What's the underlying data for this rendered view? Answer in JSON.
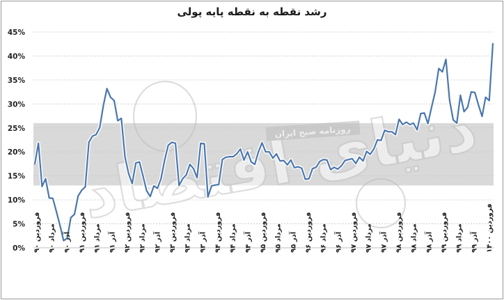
{
  "chart_data": {
    "type": "line",
    "title": "رشد نقطه به نقطه پایه پولی",
    "xlabel": "",
    "ylabel": "",
    "ylim": [
      0,
      45
    ],
    "yticks": [
      "0%",
      "5%",
      "10%",
      "15%",
      "20%",
      "25%",
      "30%",
      "35%",
      "40%",
      "45%"
    ],
    "grid": true,
    "band": [
      13,
      26
    ],
    "watermark": {
      "brand": "دنیای اقتصاد",
      "tag": "روزنامه صبح ایران"
    },
    "x_ticks": [
      "فروردین ۹۰",
      "مرداد ۹۰",
      "آذر ۹۰",
      "فروردین ۹۱",
      "مرداد ۹۱",
      "آذر ۹۱",
      "فروردین ۹۲",
      "مرداد ۹۲",
      "آذر ۹۲",
      "فروردین ۹۳",
      "مرداد ۹۳",
      "آذر ۹۳",
      "فروردین ۹۴",
      "مرداد ۹۴",
      "آذر ۹۴",
      "فروردین ۹۵",
      "مرداد ۹۵",
      "آذر ۹۵",
      "فروردین ۹۶",
      "مرداد ۹۶",
      "آذر ۹۶",
      "فروردین ۹۷",
      "مرداد ۹۷",
      "آذر ۹۷",
      "فروردین ۹۸",
      "مرداد ۹۸",
      "آذر ۹۸",
      "فروردین ۹۹",
      "مرداد ۹۹",
      "آذر ۹۹",
      "فروردین ۱۴۰۰"
    ],
    "series": [
      {
        "color": "#4a76ad",
        "values": [
          17.5,
          21.8,
          12.8,
          14.4,
          10.4,
          10.3,
          7.5,
          4.6,
          1.5,
          2.0,
          6.3,
          7.0,
          10.8,
          12.0,
          12.7,
          22.0,
          23.3,
          23.6,
          25.1,
          29.6,
          33.2,
          31.4,
          30.7,
          26.5,
          27.0,
          19.0,
          15.5,
          13.4,
          17.7,
          17.9,
          15.0,
          11.9,
          10.7,
          12.9,
          12.4,
          14.4,
          18.3,
          21.4,
          22.0,
          21.8,
          13.0,
          14.4,
          15.2,
          17.4,
          16.5,
          14.6,
          21.8,
          21.7,
          10.6,
          12.9,
          13.1,
          13.2,
          18.4,
          18.9,
          19.0,
          19.0,
          19.6,
          20.6,
          18.3,
          20.0,
          17.9,
          17.4,
          20.0,
          21.9,
          20.0,
          20.0,
          18.7,
          19.6,
          18.1,
          18.2,
          17.3,
          18.3,
          16.7,
          16.9,
          16.6,
          14.3,
          14.4,
          16.5,
          16.8,
          18.0,
          18.4,
          18.3,
          16.3,
          16.8,
          16.4,
          17.1,
          18.2,
          18.4,
          18.6,
          17.6,
          18.9,
          18.1,
          20.1,
          19.5,
          20.6,
          22.5,
          22.4,
          24.5,
          24.2,
          24.2,
          23.6,
          26.8,
          25.7,
          26.2,
          25.7,
          26.0,
          24.6,
          28.0,
          28.1,
          25.9,
          29.3,
          32.5,
          37.4,
          36.7,
          39.3,
          30.8,
          26.7,
          26.0,
          31.8,
          28.4,
          29.3,
          32.5,
          32.4,
          29.8,
          27.4,
          31.4,
          30.7,
          42.6
        ]
      }
    ]
  }
}
